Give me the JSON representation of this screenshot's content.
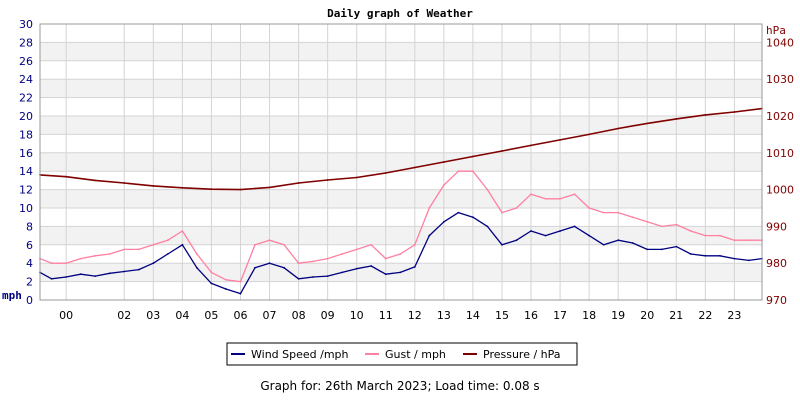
{
  "title": "Daily graph of Weather",
  "footer": "Graph for: 26th March 2023; Load time: 0.08 s",
  "colors": {
    "wind": "#000080",
    "gust": "#ff80a0",
    "pressure": "#800000",
    "left_axis": "#000080",
    "right_axis": "#800000",
    "band": "#f2f2f2",
    "grid": "#d4d4d4"
  },
  "chart_data": {
    "type": "line",
    "title": "Daily graph of Weather",
    "x_ticks": [
      "00",
      "02",
      "03",
      "04",
      "05",
      "06",
      "07",
      "08",
      "09",
      "10",
      "11",
      "12",
      "13",
      "14",
      "15",
      "16",
      "17",
      "18",
      "19",
      "20",
      "21",
      "22",
      "23"
    ],
    "x_range_hours": [
      -0.9,
      23.95
    ],
    "grid": true,
    "legend_position": "bottom",
    "y_left": {
      "label": "mph",
      "range": [
        0,
        30
      ],
      "ticks": [
        0,
        2,
        4,
        6,
        8,
        10,
        12,
        14,
        16,
        18,
        20,
        22,
        24,
        26,
        28,
        30
      ]
    },
    "y_right": {
      "label": "hPa",
      "range": [
        970,
        1045
      ],
      "ticks": [
        970,
        980,
        990,
        1000,
        1010,
        1020,
        1030,
        1040
      ]
    },
    "series": [
      {
        "name": "Wind Speed /mph",
        "axis": "left",
        "x": [
          -0.9,
          -0.5,
          0,
          0.5,
          1,
          1.5,
          2,
          2.5,
          3,
          3.5,
          4,
          4.5,
          5,
          5.5,
          6,
          6.5,
          7,
          7.5,
          8,
          8.5,
          9,
          9.5,
          10,
          10.5,
          11,
          11.5,
          12,
          12.5,
          13,
          13.5,
          14,
          14.5,
          15,
          15.5,
          16,
          16.5,
          17,
          17.5,
          18,
          18.5,
          19,
          19.5,
          20,
          20.5,
          21,
          21.5,
          22,
          22.5,
          23,
          23.5,
          23.95
        ],
        "values": [
          3,
          2.3,
          2.5,
          2.8,
          2.6,
          2.9,
          3.1,
          3.3,
          4,
          5,
          6,
          3.5,
          1.8,
          1.2,
          0.7,
          3.5,
          4,
          3.5,
          2.3,
          2.5,
          2.6,
          3,
          3.4,
          3.7,
          2.8,
          3,
          3.6,
          7,
          8.5,
          9.5,
          9,
          8,
          6,
          6.5,
          7.5,
          7,
          7.5,
          8,
          7,
          6,
          6.5,
          6.2,
          5.5,
          5.5,
          5.8,
          5,
          4.8,
          4.8,
          4.5,
          4.3,
          4.5
        ]
      },
      {
        "name": "Gust / mph",
        "axis": "left",
        "x": [
          -0.9,
          -0.5,
          0,
          0.5,
          1,
          1.5,
          2,
          2.5,
          3,
          3.5,
          4,
          4.5,
          5,
          5.5,
          6,
          6.5,
          7,
          7.5,
          8,
          8.5,
          9,
          9.5,
          10,
          10.5,
          11,
          11.5,
          12,
          12.5,
          13,
          13.5,
          14,
          14.5,
          15,
          15.5,
          16,
          16.5,
          17,
          17.5,
          18,
          18.5,
          19,
          19.5,
          20,
          20.5,
          21,
          21.5,
          22,
          22.5,
          23,
          23.5,
          23.95
        ],
        "values": [
          4.5,
          4,
          4,
          4.5,
          4.8,
          5,
          5.5,
          5.5,
          6,
          6.5,
          7.5,
          5,
          3,
          2.2,
          2,
          6,
          6.5,
          6,
          4,
          4.2,
          4.5,
          5,
          5.5,
          6,
          4.5,
          5,
          6,
          10,
          12.5,
          14,
          14,
          12,
          9.5,
          10,
          11.5,
          11,
          11,
          11.5,
          10,
          9.5,
          9.5,
          9,
          8.5,
          8,
          8.2,
          7.5,
          7,
          7,
          6.5,
          6.5,
          6.5
        ]
      },
      {
        "name": "Pressure / hPa",
        "axis": "right",
        "x": [
          -0.9,
          0,
          1,
          2,
          3,
          4,
          5,
          6,
          7,
          8,
          9,
          10,
          11,
          12,
          13,
          14,
          15,
          16,
          17,
          18,
          19,
          20,
          21,
          22,
          23,
          23.95
        ],
        "values": [
          1004,
          1003.5,
          1002.5,
          1001.8,
          1001,
          1000.5,
          1000.1,
          1000,
          1000.6,
          1001.8,
          1002.6,
          1003.3,
          1004.5,
          1006,
          1007.5,
          1009,
          1010.5,
          1012,
          1013.5,
          1015,
          1016.6,
          1018,
          1019.2,
          1020.3,
          1021.1,
          1022
        ]
      }
    ]
  }
}
